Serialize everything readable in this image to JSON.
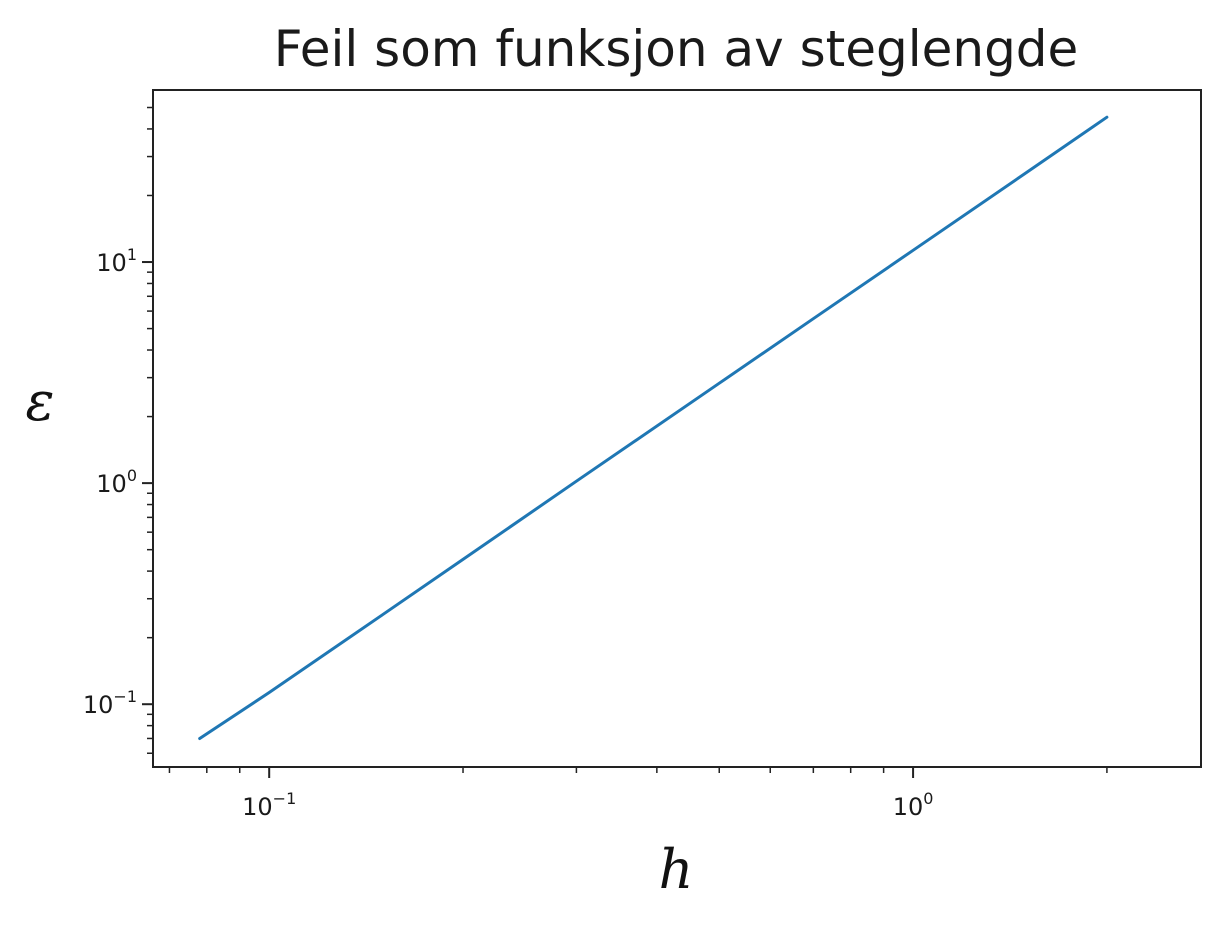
{
  "chart_data": {
    "type": "line",
    "title": "Feil som funksjon av steglengde",
    "xlabel": "h",
    "ylabel": "ε",
    "xscale": "log",
    "yscale": "log",
    "xlim": [
      0.066,
      2.8
    ],
    "ylim": [
      0.052,
      60
    ],
    "grid": false,
    "x_ticks": [
      {
        "value": 0.1,
        "base": "10",
        "exp": "−1"
      },
      {
        "value": 1,
        "base": "10",
        "exp": "0"
      }
    ],
    "y_ticks": [
      {
        "value": 0.1,
        "base": "10",
        "exp": "−1"
      },
      {
        "value": 1,
        "base": "10",
        "exp": "0"
      },
      {
        "value": 10,
        "base": "10",
        "exp": "1"
      }
    ],
    "series": [
      {
        "color": "#1f77b4",
        "x": [
          0.078,
          0.1,
          0.15,
          0.2,
          0.3,
          0.5,
          0.7,
          1.0,
          1.5,
          2.0
        ],
        "y": [
          0.07,
          0.113,
          0.254,
          0.452,
          1.02,
          2.83,
          5.54,
          11.3,
          25.4,
          45.2
        ]
      }
    ]
  }
}
